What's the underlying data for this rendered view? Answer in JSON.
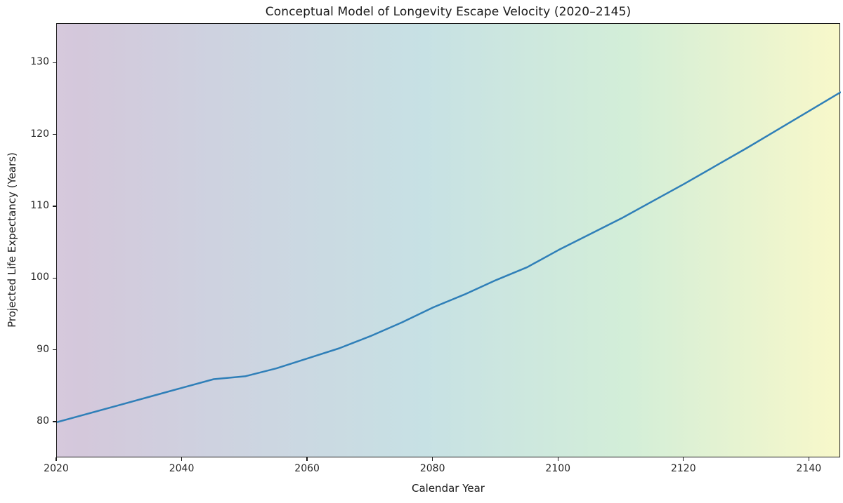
{
  "chart_data": {
    "type": "line",
    "title": "Conceptual Model of Longevity Escape Velocity (2020–2145)",
    "xlabel": "Calendar Year",
    "ylabel": "Projected Life Expectancy (Years)",
    "x": [
      2020,
      2025,
      2030,
      2035,
      2040,
      2045,
      2050,
      2055,
      2060,
      2065,
      2070,
      2075,
      2080,
      2085,
      2090,
      2095,
      2100,
      2105,
      2110,
      2115,
      2120,
      2125,
      2130,
      2135,
      2140,
      2145
    ],
    "values": [
      80.0,
      81.2,
      82.4,
      83.6,
      84.8,
      86.0,
      86.4,
      87.5,
      88.9,
      90.3,
      92.0,
      93.9,
      96.0,
      97.8,
      99.8,
      101.6,
      104.0,
      106.2,
      108.4,
      110.8,
      113.2,
      115.7,
      118.2,
      120.8,
      123.4,
      126.0
    ],
    "xlim": [
      2020,
      2145
    ],
    "ylim": [
      75,
      135.5
    ],
    "xticks": [
      2020,
      2040,
      2060,
      2080,
      2100,
      2120,
      2140
    ],
    "yticks": [
      80,
      90,
      100,
      110,
      120,
      130
    ],
    "grid": false,
    "legend": "none",
    "line_color": "#2f7fb8",
    "line_width": 2.5,
    "spine_color": "#1a1a1a",
    "tick_label_color": "#262626",
    "background_gradient": {
      "direction": "90deg",
      "stops": [
        {
          "pos": 0.0,
          "color": "#d6c9dd"
        },
        {
          "pos": 0.03,
          "color": "#d4c8db"
        },
        {
          "pos": 0.2,
          "color": "#ced2e0"
        },
        {
          "pos": 0.47,
          "color": "#c7e1e4"
        },
        {
          "pos": 0.73,
          "color": "#d3eed8"
        },
        {
          "pos": 1.0,
          "color": "#f8f8ca"
        }
      ]
    }
  }
}
